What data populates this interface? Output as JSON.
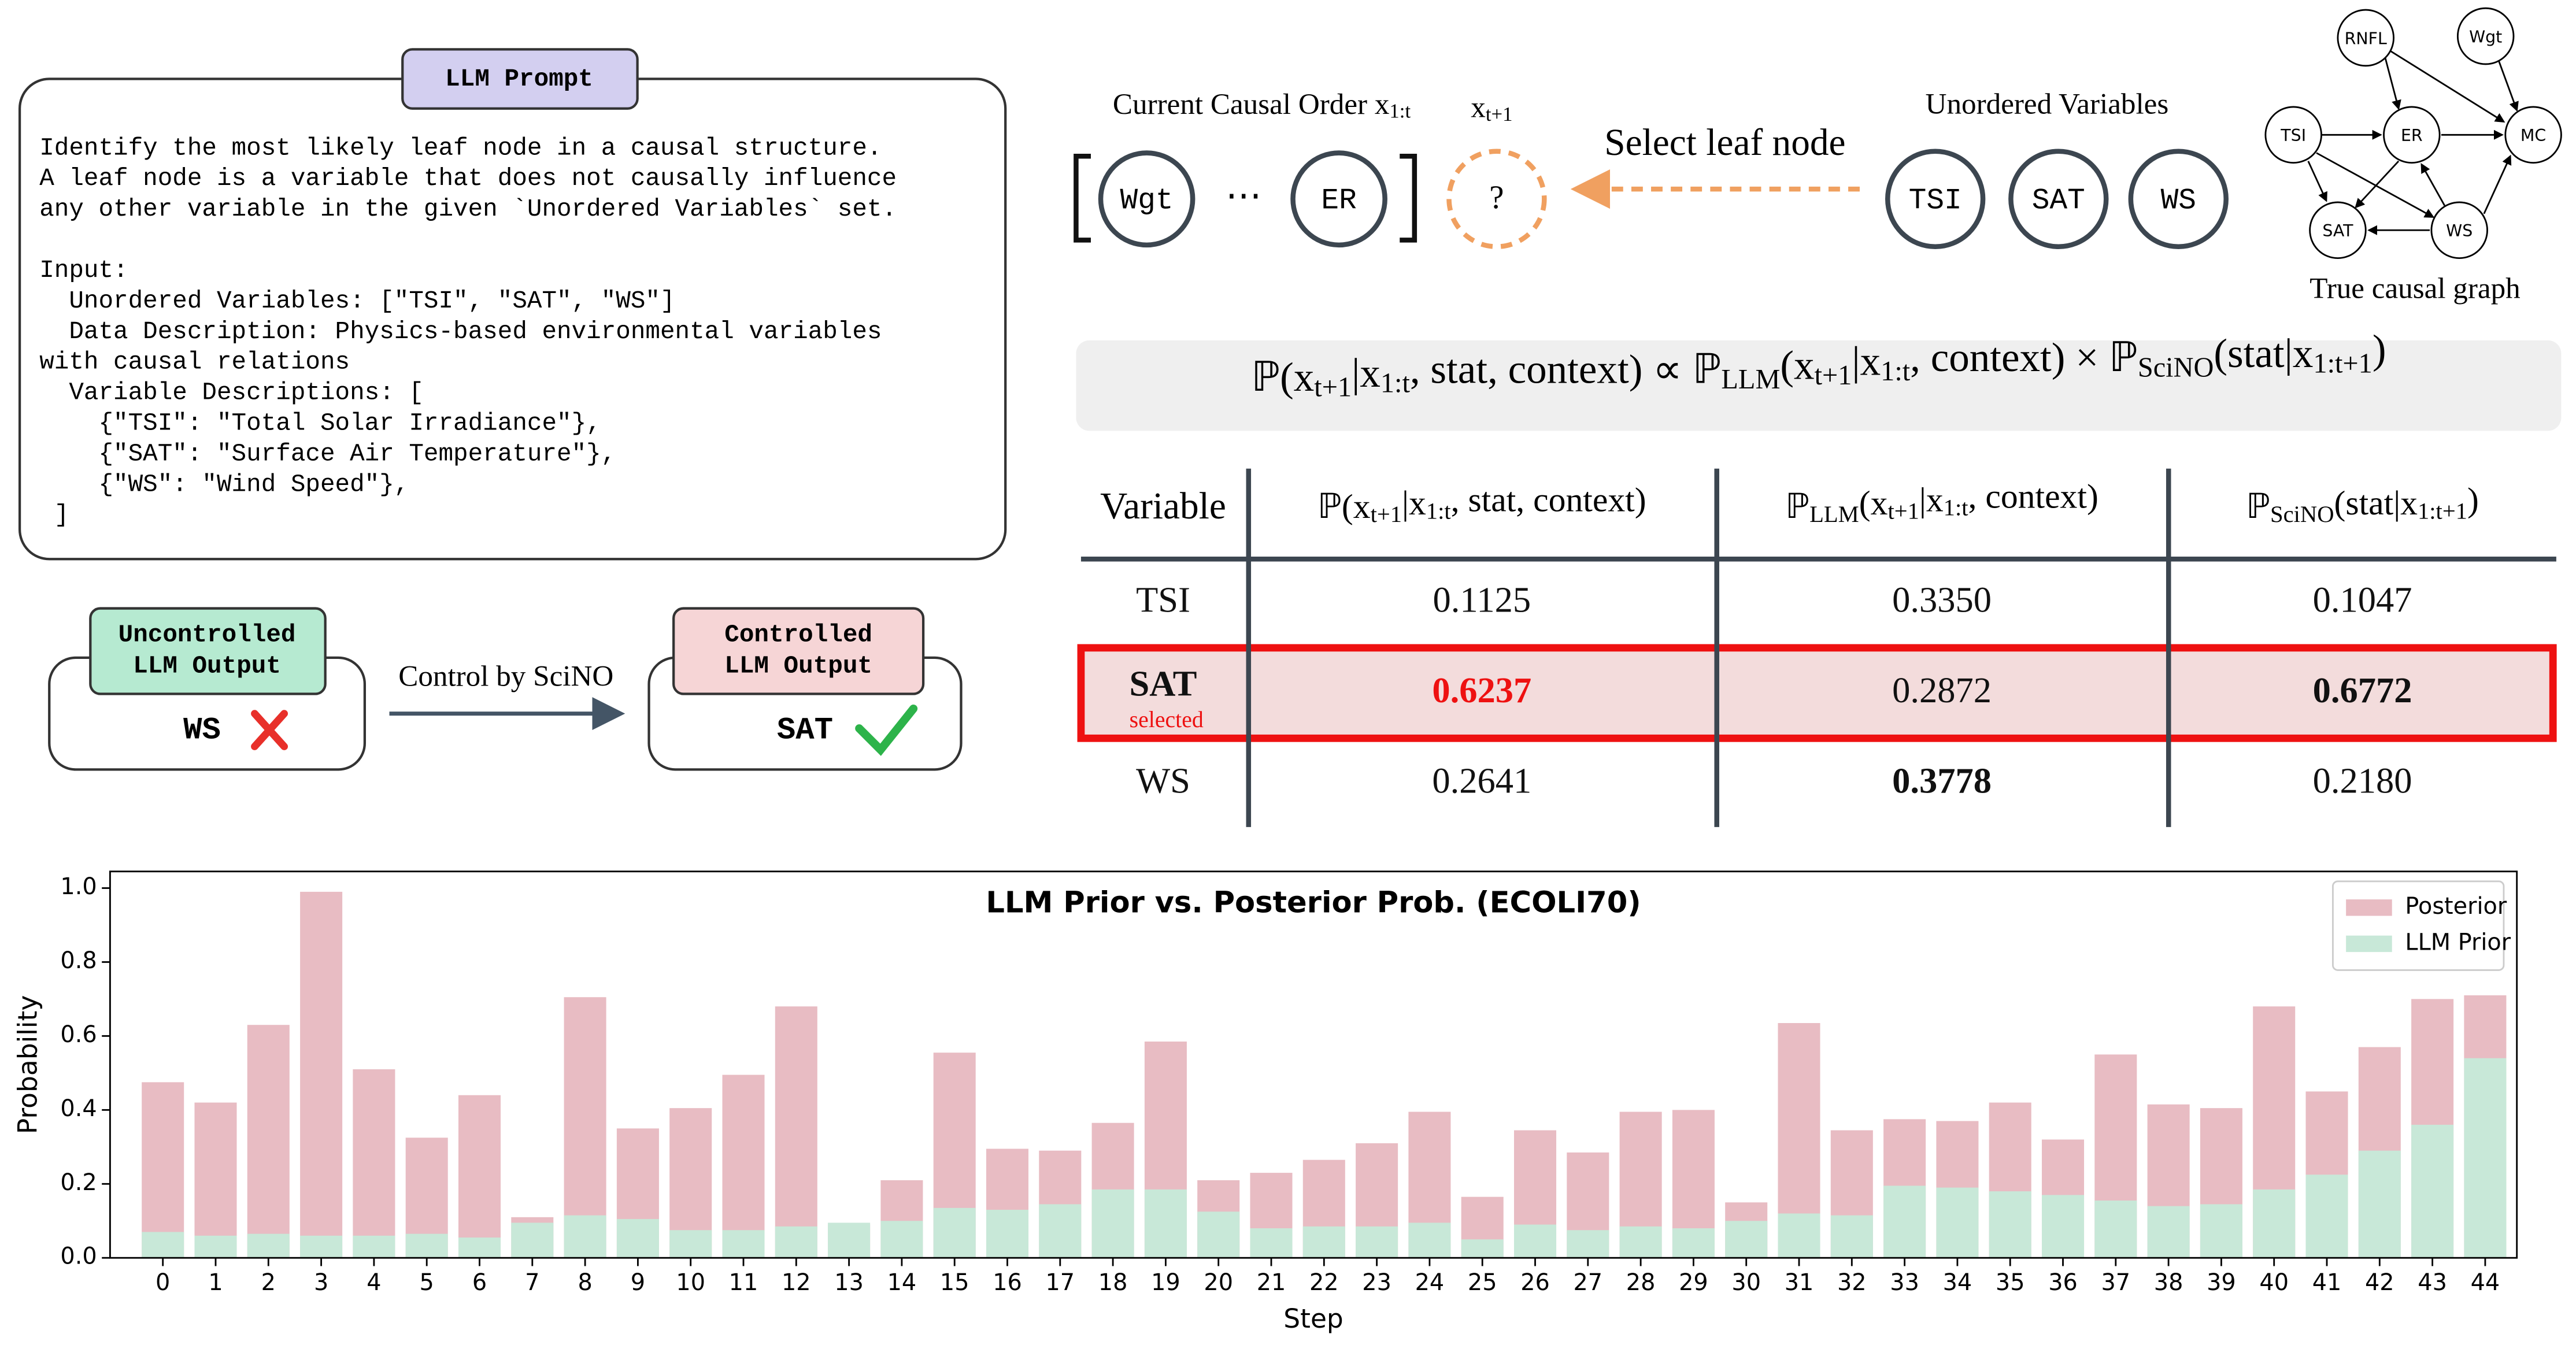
{
  "prompt": {
    "label": "LLM Prompt",
    "instruction": [
      "Identify the most likely leaf node in a causal structure.",
      "A leaf node is a variable that does not causally influence",
      "any other variable in the given `Unordered Variables` set."
    ],
    "input": [
      "Input:",
      "  Unordered Variables: [\"TSI\", \"SAT\", \"WS\"]",
      "  Data Description: Physics-based environmental variables",
      "with causal relations",
      "  Variable Descriptions: [",
      "    {\"TSI\": \"Total Solar Irradiance\"},",
      "    {\"SAT\": \"Surface Air Temperature\"},",
      "    {\"WS\": \"Wind Speed\"},",
      " ]"
    ]
  },
  "uncontrolled": {
    "label": [
      "Uncontrolled",
      "LLM Output"
    ],
    "output": "WS"
  },
  "control_label": "Control by SciNO",
  "controlled": {
    "label": [
      "Controlled",
      "LLM Output"
    ],
    "output": "SAT"
  },
  "causal_order": {
    "title": [
      "Current Causal Order x",
      "1:t"
    ],
    "nodes": [
      "Wgt",
      "ER"
    ],
    "ellipsis": "⋯",
    "next_label": [
      "x",
      "t+1"
    ],
    "next_node": "?"
  },
  "select_label": "Select leaf node",
  "unordered": {
    "title": "Unordered Variables",
    "nodes": [
      "TSI",
      "SAT",
      "WS"
    ]
  },
  "graph": {
    "nodes": [
      "RNFL",
      "Wgt",
      "TSI",
      "ER",
      "MC",
      "SAT",
      "WS"
    ],
    "caption": "True causal graph"
  },
  "formula": [
    "ℙ(x",
    "t+1",
    "|x",
    "1:t",
    ", stat, context) ∝ ℙ",
    "LLM",
    "(x",
    "t+1",
    "|x",
    "1:t",
    ", context) × ℙ",
    "SciNO",
    "(stat|x",
    "1:t+1",
    ")"
  ],
  "table": {
    "header": [
      "Variable",
      [
        "ℙ(x",
        "t+1",
        "|x",
        "1:t",
        ", stat, context)"
      ],
      [
        "ℙ",
        "LLM",
        "(x",
        "t+1",
        "|x",
        "1:t",
        ", context)"
      ],
      [
        "ℙ",
        "SciNO",
        "(stat|x",
        "1:t+1",
        ")"
      ]
    ],
    "rows": [
      [
        "TSI",
        "0.1125",
        "0.3350",
        "0.1047"
      ],
      [
        "SAT",
        "0.6237",
        "0.2872",
        "0.6772"
      ],
      [
        "WS",
        "0.2641",
        "0.3778",
        "0.2180"
      ]
    ],
    "selected_note": "selected"
  },
  "chart_data": {
    "type": "bar",
    "title": "LLM Prior vs. Posterior Prob. (ECOLI70)",
    "x_label": "Step",
    "y_label": "Probability",
    "x": [
      0,
      1,
      2,
      3,
      4,
      5,
      6,
      7,
      8,
      9,
      10,
      11,
      12,
      13,
      14,
      15,
      16,
      17,
      18,
      19,
      20,
      21,
      22,
      23,
      24,
      25,
      26,
      27,
      28,
      29,
      30,
      31,
      32,
      33,
      34,
      35,
      36,
      37,
      38,
      39,
      40,
      41,
      42,
      43,
      44
    ],
    "series": [
      {
        "name": "Posterior",
        "color": "#e8bcc3",
        "values": [
          0.475,
          0.42,
          0.63,
          0.99,
          0.51,
          0.325,
          0.44,
          0.11,
          0.705,
          0.35,
          0.405,
          0.495,
          0.68,
          0.09,
          0.21,
          0.555,
          0.295,
          0.29,
          0.365,
          0.585,
          0.21,
          0.23,
          0.265,
          0.31,
          0.395,
          0.165,
          0.345,
          0.285,
          0.395,
          0.4,
          0.15,
          0.635,
          0.345,
          0.375,
          0.37,
          0.42,
          0.32,
          0.55,
          0.415,
          0.405,
          0.68,
          0.45,
          0.57,
          0.7,
          0.71
        ]
      },
      {
        "name": "LLM Prior",
        "color": "#c8e8d8",
        "values": [
          0.07,
          0.06,
          0.065,
          0.06,
          0.06,
          0.065,
          0.055,
          0.095,
          0.115,
          0.105,
          0.075,
          0.075,
          0.085,
          0.095,
          0.1,
          0.135,
          0.13,
          0.145,
          0.185,
          0.185,
          0.125,
          0.08,
          0.085,
          0.085,
          0.095,
          0.05,
          0.09,
          0.075,
          0.085,
          0.08,
          0.1,
          0.12,
          0.115,
          0.195,
          0.19,
          0.18,
          0.17,
          0.155,
          0.14,
          0.145,
          0.185,
          0.225,
          0.29,
          0.36,
          0.54
        ]
      }
    ],
    "xlim": [
      -1,
      44.6
    ],
    "xticks": [
      0,
      1,
      2,
      3,
      4,
      5,
      6,
      7,
      8,
      9,
      10,
      11,
      12,
      13,
      14,
      15,
      16,
      17,
      18,
      19,
      20,
      21,
      22,
      23,
      24,
      25,
      26,
      27,
      28,
      29,
      30,
      31,
      32,
      33,
      34,
      35,
      36,
      37,
      38,
      39,
      40,
      41,
      42,
      43,
      44
    ],
    "ylim": [
      0,
      1.045
    ],
    "yticks": [
      {
        "value": 0,
        "label": "0.0"
      },
      0.2,
      0.4,
      0.6,
      0.8,
      {
        "value": 1,
        "label": "1.0"
      }
    ],
    "legend": "upper right"
  }
}
